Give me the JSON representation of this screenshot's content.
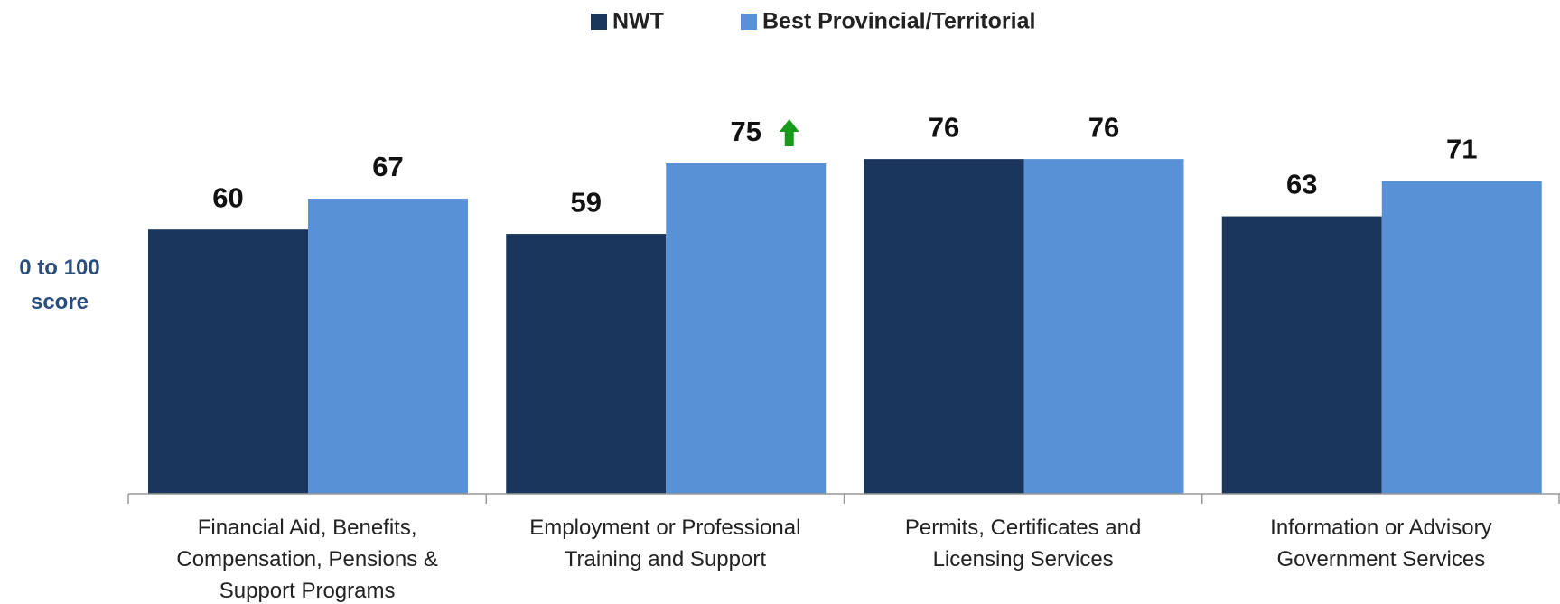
{
  "chart_data": {
    "type": "bar",
    "categories": [
      "Financial Aid, Benefits, Compensation, Pensions & Support Programs",
      "Employment or Professional Training and Support",
      "Permits, Certificates and Licensing Services",
      "Information or Advisory Government Services"
    ],
    "series": [
      {
        "name": "NWT",
        "color": "#1b365d",
        "values": [
          60,
          59,
          76,
          63
        ]
      },
      {
        "name": "Best Provincial/Territorial",
        "color": "#5891d6",
        "values": [
          67,
          75,
          76,
          71
        ]
      }
    ],
    "y_axis_label": "0 to 100 score",
    "ylim": [
      0,
      100
    ],
    "legend": "top"
  }
}
